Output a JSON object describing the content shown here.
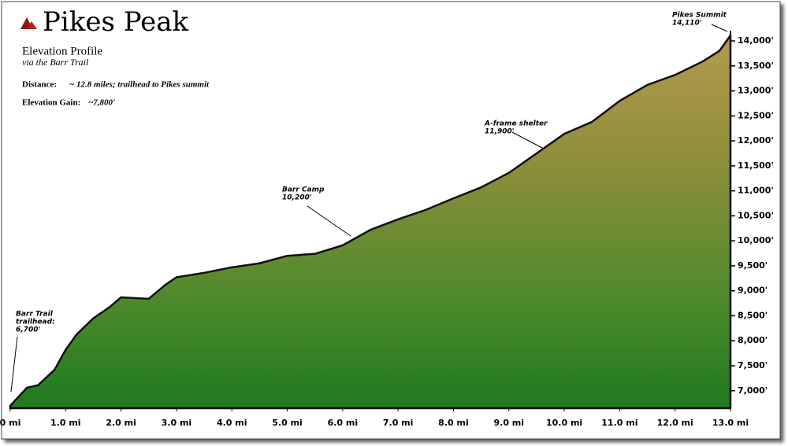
{
  "chart_data": {
    "type": "area",
    "title": "Pikes Peak",
    "subtitle": "Elevation Profile",
    "subtitle2": "via the Barr Trail",
    "stats": [
      {
        "label": "Distance:",
        "value": "~ 12.8 miles;  trailhead to Pikes summit"
      },
      {
        "label": "Elevation Gain:",
        "value": "~7,800'"
      }
    ],
    "annotations": [
      {
        "lines": [
          "Barr Trail",
          "trailhead:",
          "6,700'"
        ]
      },
      {
        "lines": [
          "Barr Camp",
          "10,200'"
        ]
      },
      {
        "lines": [
          "A-frame shelter",
          "11,900'"
        ]
      },
      {
        "lines": [
          "Pikes Summit",
          "14,110'"
        ]
      }
    ],
    "x": [
      0,
      0.3,
      0.5,
      0.8,
      1.0,
      1.2,
      1.5,
      1.8,
      2.0,
      2.5,
      2.8,
      3.0,
      3.5,
      4.0,
      4.5,
      5.0,
      5.5,
      6.0,
      6.5,
      7.0,
      7.5,
      8.0,
      8.5,
      9.0,
      9.5,
      10.0,
      10.5,
      11.0,
      11.5,
      12.0,
      12.5,
      12.8,
      13.0
    ],
    "values": [
      6700,
      7060,
      7110,
      7420,
      7820,
      8130,
      8450,
      8680,
      8870,
      8840,
      9120,
      9270,
      9360,
      9470,
      9550,
      9700,
      9740,
      9910,
      10220,
      10430,
      10620,
      10850,
      11070,
      11360,
      11750,
      12140,
      12380,
      12800,
      13120,
      13320,
      13590,
      13800,
      14110
    ],
    "color": "#6b8a2e",
    "xlim": [
      0,
      13
    ],
    "xticks": [
      {
        "value": 0,
        "label": "0 mi"
      },
      {
        "value": 1,
        "label": "1.0 mi"
      },
      {
        "value": 2,
        "label": "2.0 mi"
      },
      {
        "value": 3,
        "label": "3.0 mi"
      },
      {
        "value": 4,
        "label": "4.0 mi"
      },
      {
        "value": 5,
        "label": "5.0 mi"
      },
      {
        "value": 6,
        "label": "6.0 mi"
      },
      {
        "value": 7,
        "label": "7.0 mi"
      },
      {
        "value": 8,
        "label": "8.0 mi"
      },
      {
        "value": 9,
        "label": "9.0 mi"
      },
      {
        "value": 10,
        "label": "10.0 mi"
      },
      {
        "value": 11,
        "label": "11.0 mi"
      },
      {
        "value": 12,
        "label": "12.0 mi"
      },
      {
        "value": 13,
        "label": "13.0 mi"
      }
    ],
    "ylim": [
      6650,
      14200
    ],
    "yticks": [
      {
        "value": 7000,
        "label": "7,000'"
      },
      {
        "value": 7500,
        "label": "7,500'"
      },
      {
        "value": 8000,
        "label": "8,000'"
      },
      {
        "value": 8500,
        "label": "8,500'"
      },
      {
        "value": 9000,
        "label": "9,000'"
      },
      {
        "value": 9500,
        "label": "9,500'"
      },
      {
        "value": 10000,
        "label": "10,000'"
      },
      {
        "value": 10500,
        "label": "10,500'"
      },
      {
        "value": 11000,
        "label": "11,000'"
      },
      {
        "value": 11500,
        "label": "11,500'"
      },
      {
        "value": 12000,
        "label": "12,000'"
      },
      {
        "value": 12500,
        "label": "12,500'"
      },
      {
        "value": 13000,
        "label": "13,000'"
      },
      {
        "value": 13500,
        "label": "13,500'"
      },
      {
        "value": 14000,
        "label": "14,000'"
      }
    ]
  }
}
